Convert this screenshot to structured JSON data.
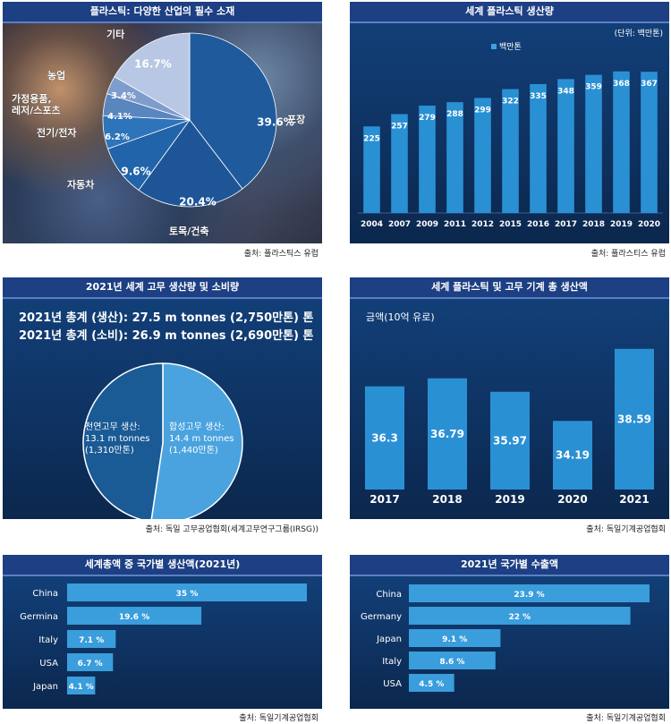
{
  "panels": {
    "p1": {
      "title": "플라스틱: 다양한 산업의 필수 소재",
      "source": "출처: 플라스틱스 유럽"
    },
    "p2": {
      "title": "세계 플라스틱 생산량",
      "source": "출처: 플라스티스 유럽",
      "unit": "(단위: 백만톤)",
      "legend": "백만톤"
    },
    "p3": {
      "title": "2021년 세계 고무 생산량 및 소비량",
      "source": "출처: 독일 고무공업협회(세계고무연구그룹(IRSG))",
      "total_prod": "2021년 총계 (생산): 27.5 m tonnes (2,750만톤) 톤",
      "total_cons": "2021년 총계 (소비): 26.9 m tonnes (2,690만톤) 톤"
    },
    "p4": {
      "title": "세계 플라스틱 및 고무 기계 총 생산액",
      "source": "출처: 독일기계공업협회",
      "axis_note": "금액(10억 유로)"
    },
    "p5": {
      "title": "세계총액 중 국가별 생산액(2021년)",
      "source": "출처: 독일기계공업협회"
    },
    "p6": {
      "title": "2021년 국가별 수출액",
      "source": "출처: 독일기계공업협회"
    }
  },
  "chart_data": [
    {
      "type": "pie",
      "title": "플라스틱: 다양한 산업의 필수 소재",
      "slices": [
        {
          "label": "포장",
          "value": 39.6,
          "display": "39.6%",
          "color": "#1f5a9c"
        },
        {
          "label": "토목/건축",
          "value": 20.4,
          "display": "20.4%",
          "color": "#1e5597"
        },
        {
          "label": "자동차",
          "value": 9.6,
          "display": "9.6%",
          "color": "#2164aa"
        },
        {
          "label": "전기/전자",
          "value": 6.2,
          "display": "6.2%",
          "color": "#2e74ba"
        },
        {
          "label": "가정용품,\n레저/스포츠",
          "value": 4.1,
          "display": "4.1%",
          "color": "#5a86bf"
        },
        {
          "label": "농업",
          "value": 3.4,
          "display": "3.4%",
          "color": "#7e9ccc"
        },
        {
          "label": "기타",
          "value": 16.7,
          "display": "16.7%",
          "color": "#b8c8e4"
        }
      ]
    },
    {
      "type": "bar",
      "title": "세계 플라스틱 생산량",
      "series_name": "백만톤",
      "categories": [
        "2004",
        "2007",
        "2009",
        "2011",
        "2012",
        "2015",
        "2016",
        "2017",
        "2018",
        "2019",
        "2020"
      ],
      "values": [
        225,
        257,
        279,
        288,
        299,
        322,
        335,
        348,
        359,
        368,
        367
      ],
      "ylim": [
        0,
        400
      ]
    },
    {
      "type": "pie",
      "title": "2021년 세계 고무 생산량 및 소비량",
      "slices": [
        {
          "label": "합성고무 생산:\n14.4 m tonnes\n(1,440만톤)",
          "value": 14.4,
          "color": "#4aa3df"
        },
        {
          "label": "천연고무 생산:\n13.1 m tonnes\n(1,310만톤)",
          "value": 13.1,
          "color": "#1a5a95"
        }
      ]
    },
    {
      "type": "bar",
      "title": "세계 플라스틱 및 고무 기계 총 생산액",
      "ylabel": "금액(10억 유로)",
      "categories": [
        "2017",
        "2018",
        "2019",
        "2020",
        "2021"
      ],
      "values": [
        36.3,
        36.79,
        35.97,
        34.19,
        38.59
      ],
      "ylim": [
        30,
        40
      ]
    },
    {
      "type": "bar",
      "orientation": "horizontal",
      "title": "세계총액 중 국가별 생산액(2021년)",
      "categories": [
        "China",
        "Germina",
        "Italy",
        "USA",
        "Japan"
      ],
      "values": [
        35,
        19.6,
        7.1,
        6.7,
        4.1
      ],
      "labels": [
        "35 %",
        "19.6 %",
        "7.1 %",
        "6.7 %",
        "4.1 %"
      ],
      "xlim": [
        0,
        35
      ]
    },
    {
      "type": "bar",
      "orientation": "horizontal",
      "title": "2021년 국가별 수출액",
      "categories": [
        "China",
        "Germany",
        "Japan",
        "Italy",
        "USA"
      ],
      "values": [
        23.9,
        22,
        9.1,
        8.6,
        4.5
      ],
      "labels": [
        "23.9 %",
        "22 %",
        "9.1 %",
        "8.6 %",
        "4.5 %"
      ],
      "xlim": [
        0,
        23.9
      ]
    }
  ]
}
